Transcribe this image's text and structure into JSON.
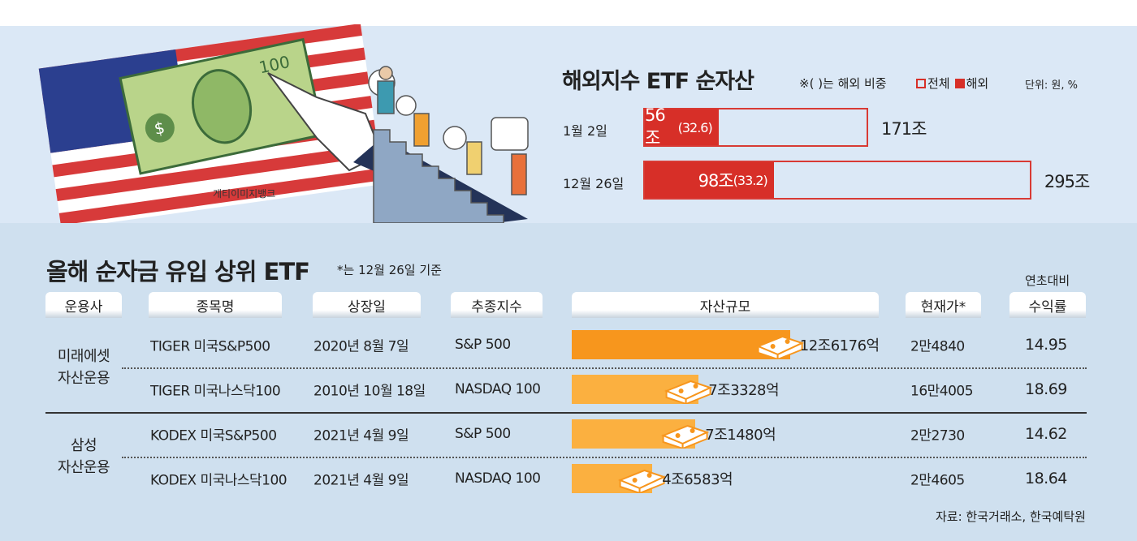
{
  "illustration": {
    "credit": "게티이미지뱅크",
    "icons": [
      "us-flag",
      "dollar-bill",
      "pointing-hand",
      "people-climbing-stairs"
    ]
  },
  "chart_data": [
    {
      "type": "bar",
      "title": "해외지수 ETF 순자산",
      "note": "※( )는 해외 비중",
      "legend": [
        {
          "label": "전체",
          "style": "outline",
          "color": "#d72f28"
        },
        {
          "label": "해외",
          "style": "filled",
          "color": "#d72f28"
        }
      ],
      "unit": "단위: 원, %",
      "categories": [
        "1월 2일",
        "12월 26일"
      ],
      "series": [
        {
          "name": "전체",
          "values": [
            171,
            295
          ],
          "labels": [
            "171조",
            "295조"
          ]
        },
        {
          "name": "해외",
          "values": [
            56,
            98
          ],
          "labels": [
            "56조",
            "98조"
          ],
          "share": [
            "(32.6)",
            "(33.2)"
          ]
        }
      ]
    },
    {
      "type": "table",
      "title": "올해 순자금 유입 상위 ETF",
      "note": "*는 12월 26일 기준",
      "columns": [
        "운용사",
        "종목명",
        "상장일",
        "추종지수",
        "자산규모",
        "현재가*",
        "수익률"
      ],
      "column_super": "연초대비",
      "groups": [
        {
          "manager": [
            "미래에셋",
            "자산운용"
          ],
          "rows": [
            {
              "name": "TIGER 미국S&P500",
              "listed": "2020년 8월 7일",
              "index": "S&P 500",
              "assets": 12.6176,
              "assets_label": "12조6176억",
              "price": "2만4840",
              "return": "14.95"
            },
            {
              "name": "TIGER 미국나스닥100",
              "listed": "2010년 10월 18일",
              "index": "NASDAQ 100",
              "assets": 7.3328,
              "assets_label": "7조3328억",
              "price": "16만4005",
              "return": "18.69"
            }
          ]
        },
        {
          "manager": [
            "삼성",
            "자산운용"
          ],
          "rows": [
            {
              "name": "KODEX 미국S&P500",
              "listed": "2021년 4월 9일",
              "index": "S&P 500",
              "assets": 7.148,
              "assets_label": "7조1480억",
              "price": "2만2730",
              "return": "14.62"
            },
            {
              "name": "KODEX 미국나스닥100",
              "listed": "2021년 4월 9일",
              "index": "NASDAQ 100",
              "assets": 4.6583,
              "assets_label": "4조6583억",
              "price": "2만4605",
              "return": "18.64"
            }
          ]
        }
      ],
      "colors": {
        "top_bar": "#f7961d",
        "other_bars": "#fbb040"
      },
      "source": "자료: 한국거래소, 한국예탁원"
    }
  ]
}
